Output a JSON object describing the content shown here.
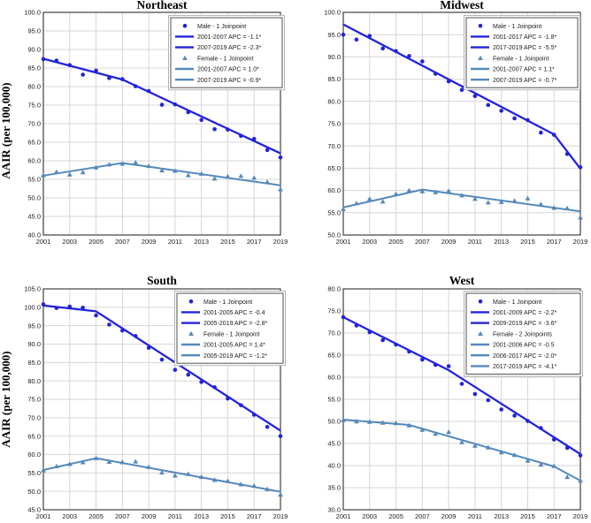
{
  "figure": {
    "ylabel": "AAIR (per 100,000)",
    "background": "#ffffff"
  },
  "colors": {
    "male": "#2323dc",
    "female": "#5589bb",
    "grid": "#d6d6d6",
    "frame": "#4f4f4f",
    "legend_border": "#4f4f4f",
    "legend_outer_border": "#b4b4b4",
    "text": "#1a1a1a"
  },
  "x_tick_labels": [
    "2001",
    "2003",
    "2005",
    "2007",
    "2009",
    "2011",
    "2013",
    "2015",
    "2017",
    "2019"
  ],
  "chart_data": [
    {
      "type": "scatter+line",
      "title": "Northeast",
      "xlabel": "",
      "ylabel": "AAIR (per 100,000)",
      "xlim": [
        2001,
        2019
      ],
      "ylim": [
        40,
        100
      ],
      "ytick_step": 5,
      "grid": true,
      "legend_position": "top-right",
      "x": [
        2001,
        2002,
        2003,
        2004,
        2005,
        2006,
        2007,
        2008,
        2009,
        2010,
        2011,
        2012,
        2013,
        2014,
        2015,
        2016,
        2017,
        2018,
        2019
      ],
      "series": [
        {
          "name": "Male - 1 Joinpoint",
          "sex": "male",
          "marker": "circle",
          "values": [
            87.4,
            87.0,
            85.8,
            83.2,
            84.3,
            82.3,
            82.0,
            80.1,
            78.8,
            75.1,
            75.2,
            73.1,
            71.0,
            68.5,
            68.4,
            66.7,
            65.9,
            62.9,
            60.9
          ],
          "trend_points": [
            [
              2001,
              87.5
            ],
            [
              2007,
              81.9
            ],
            [
              2019,
              62.0
            ]
          ],
          "apc_labels": [
            "2001-2007 APC  = -1.1*",
            "2007-2019 APC  = -2.3*"
          ]
        },
        {
          "name": "Female - 1 Joinpoint",
          "sex": "female",
          "marker": "triangle",
          "values": [
            56.1,
            57.0,
            56.3,
            56.9,
            58.2,
            59.0,
            59.2,
            59.5,
            58.6,
            57.4,
            57.3,
            56.1,
            56.5,
            55.2,
            55.8,
            55.9,
            55.4,
            54.3,
            52.3
          ],
          "trend_points": [
            [
              2001,
              56.0
            ],
            [
              2007,
              59.4
            ],
            [
              2019,
              53.4
            ]
          ],
          "apc_labels": [
            "2001-2007 APC  =  1.0*",
            "2007-2019 APC  = -0.9*"
          ]
        }
      ]
    },
    {
      "type": "scatter+line",
      "title": "Midwest",
      "xlabel": "",
      "ylabel": "AAIR (per 100,000)",
      "xlim": [
        2001,
        2019
      ],
      "ylim": [
        50,
        100
      ],
      "ytick_step": 5,
      "grid": true,
      "legend_position": "top-right",
      "x": [
        2001,
        2002,
        2003,
        2004,
        2005,
        2006,
        2007,
        2008,
        2009,
        2010,
        2011,
        2012,
        2013,
        2014,
        2015,
        2016,
        2017,
        2018,
        2019
      ],
      "series": [
        {
          "name": "Male - 1 Joinpoint",
          "sex": "male",
          "marker": "circle",
          "values": [
            95.0,
            93.9,
            94.7,
            91.9,
            91.3,
            90.2,
            89.0,
            86.2,
            84.5,
            82.6,
            81.2,
            79.2,
            77.9,
            76.2,
            75.8,
            73.0,
            72.5,
            68.2,
            65.2
          ],
          "trend_points": [
            [
              2001,
              97.3
            ],
            [
              2017,
              72.6
            ],
            [
              2019,
              64.9
            ]
          ],
          "apc_labels": [
            "2001-2017 APC  = -1.8*",
            "2017-2019 APC  = -5.5*"
          ]
        },
        {
          "name": "Female - 1 Joinpoint",
          "sex": "female",
          "marker": "triangle",
          "values": [
            55.8,
            57.1,
            58.1,
            57.5,
            59.2,
            60.0,
            59.8,
            59.6,
            59.9,
            58.9,
            58.1,
            57.3,
            57.4,
            57.7,
            58.2,
            56.9,
            56.1,
            56.0,
            53.9
          ],
          "trend_points": [
            [
              2001,
              56.2
            ],
            [
              2007,
              60.2
            ],
            [
              2019,
              55.3
            ]
          ],
          "apc_labels": [
            "2001-2007 APC  =  1.1*",
            "2007-2019 APC  = -0.7*"
          ]
        }
      ]
    },
    {
      "type": "scatter+line",
      "title": "South",
      "xlabel": "",
      "ylabel": "AAIR (per 100,000)",
      "xlim": [
        2001,
        2019
      ],
      "ylim": [
        45,
        105
      ],
      "ytick_step": 5,
      "grid": true,
      "legend_position": "top-right",
      "x": [
        2001,
        2002,
        2003,
        2004,
        2005,
        2006,
        2007,
        2008,
        2009,
        2010,
        2011,
        2012,
        2013,
        2014,
        2015,
        2016,
        2017,
        2018,
        2019
      ],
      "series": [
        {
          "name": "Male - 1 Joinpoint",
          "sex": "male",
          "marker": "circle",
          "values": [
            100.8,
            99.8,
            100.2,
            99.9,
            97.8,
            95.3,
            93.7,
            92.2,
            89.0,
            85.8,
            83.0,
            81.7,
            79.7,
            78.3,
            75.2,
            73.4,
            70.8,
            67.5,
            65.0
          ],
          "trend_points": [
            [
              2001,
              100.5
            ],
            [
              2005,
              98.9
            ],
            [
              2019,
              66.5
            ]
          ],
          "apc_labels": [
            "2001-2005 APC  = -0.4",
            "2005-2019 APC  = -2.8*"
          ]
        },
        {
          "name": "Female - 1 Joinpoint",
          "sex": "female",
          "marker": "triangle",
          "values": [
            55.7,
            56.8,
            57.4,
            57.9,
            59.0,
            58.0,
            57.9,
            58.1,
            56.6,
            55.1,
            54.3,
            54.7,
            53.9,
            53.1,
            52.8,
            51.9,
            51.5,
            50.6,
            49.1
          ],
          "trend_points": [
            [
              2001,
              55.8
            ],
            [
              2005,
              59.0
            ],
            [
              2019,
              49.9
            ]
          ],
          "apc_labels": [
            "2001-2005 APC  =  1.4*",
            "2005-2019 APC  = -1.2*"
          ]
        }
      ]
    },
    {
      "type": "scatter+line",
      "title": "West",
      "xlabel": "",
      "ylabel": "AAIR (per 100,000)",
      "xlim": [
        2001,
        2019
      ],
      "ylim": [
        30,
        80
      ],
      "ytick_step": 5,
      "grid": true,
      "legend_position": "top-right",
      "x": [
        2001,
        2002,
        2003,
        2004,
        2005,
        2006,
        2007,
        2008,
        2009,
        2010,
        2011,
        2012,
        2013,
        2014,
        2015,
        2016,
        2017,
        2018,
        2019
      ],
      "series": [
        {
          "name": "Male - 1 Joinpoint",
          "sex": "male",
          "marker": "circle",
          "values": [
            73.6,
            71.7,
            70.2,
            68.4,
            67.4,
            65.8,
            64.0,
            62.8,
            62.5,
            58.5,
            56.2,
            54.8,
            52.7,
            51.3,
            50.1,
            48.5,
            45.9,
            44.0,
            42.3
          ],
          "trend_points": [
            [
              2001,
              73.6
            ],
            [
              2009,
              61.6
            ],
            [
              2019,
              42.6
            ]
          ],
          "apc_labels": [
            "2001-2009 APC  = -2.2*",
            "2009-2019 APC  = -3.6*"
          ]
        },
        {
          "name": "Female - 2 Joinpoints",
          "sex": "female",
          "marker": "triangle",
          "values": [
            50.3,
            50.0,
            49.9,
            49.7,
            49.6,
            49.1,
            48.1,
            47.2,
            47.6,
            45.3,
            44.5,
            44.1,
            43.0,
            42.4,
            41.1,
            40.2,
            39.9,
            37.4,
            36.6
          ],
          "trend_points": [
            [
              2001,
              50.4
            ],
            [
              2006,
              49.2
            ],
            [
              2017,
              39.8
            ],
            [
              2019,
              36.6
            ]
          ],
          "apc_labels": [
            "2001-2006 APC  = -0.5",
            "2006-2017 APC  = -2.0*",
            "2017-2019 APC  = -4.1*"
          ]
        }
      ]
    }
  ]
}
